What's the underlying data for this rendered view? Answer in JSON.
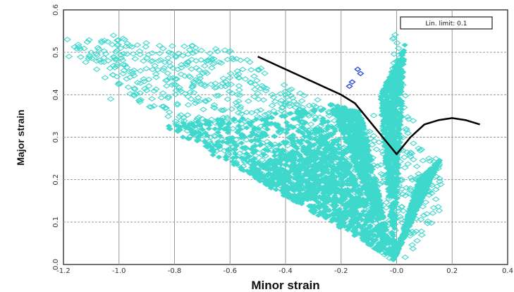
{
  "chart_data": {
    "type": "scatter",
    "title": "",
    "xlabel": "Minor strain",
    "ylabel": "Major strain",
    "xlim": [
      -1.2,
      0.4
    ],
    "ylim": [
      0.0,
      0.6
    ],
    "x_ticks": [
      -1.2,
      -1.0,
      -0.8,
      -0.6,
      -0.4,
      -0.2,
      0.0,
      0.2,
      0.4
    ],
    "x_tick_labels": [
      "-1.2",
      "-1.0",
      "-0.8",
      "-0.6",
      "-0.4",
      "-0.2",
      "-0.0",
      "0.2",
      "0.4"
    ],
    "y_ticks": [
      0.0,
      0.1,
      0.2,
      0.3,
      0.4,
      0.5,
      0.6
    ],
    "y_tick_labels": [
      "0.0",
      "0.1",
      "0.2",
      "0.3",
      "0.4",
      "0.5",
      "0.6"
    ],
    "grid": true,
    "legend": {
      "position": "top-right",
      "entries": [
        "Lin. limit: 0.1"
      ]
    },
    "colors": {
      "safe_points": "#3fd8cc",
      "critical_points": "#2f4fd6",
      "limit_curve": "#000000",
      "grid": "#9a9a9a"
    },
    "series": [
      {
        "role": "point cloud (safe)",
        "marker": "diamond",
        "cloud_outline": [
          [
            -1.2,
            0.53
          ],
          [
            -1.0,
            0.54
          ],
          [
            -0.85,
            0.52
          ],
          [
            -0.67,
            0.52
          ],
          [
            -0.58,
            0.51
          ],
          [
            -0.45,
            0.45
          ],
          [
            -0.3,
            0.4
          ],
          [
            -0.2,
            0.36
          ],
          [
            -0.12,
            0.33
          ],
          [
            -0.04,
            0.4
          ],
          [
            -0.01,
            0.55
          ],
          [
            0.02,
            0.5
          ],
          [
            0.04,
            0.38
          ],
          [
            0.1,
            0.26
          ],
          [
            0.16,
            0.25
          ],
          [
            0.16,
            0.12
          ],
          [
            0.08,
            0.05
          ],
          [
            0.01,
            0.0
          ],
          [
            -0.02,
            0.0
          ],
          [
            -0.12,
            0.06
          ],
          [
            -0.3,
            0.14
          ],
          [
            -0.55,
            0.23
          ],
          [
            -0.8,
            0.32
          ],
          [
            -1.0,
            0.42
          ],
          [
            -1.15,
            0.48
          ]
        ],
        "dense_fans": [
          {
            "tip": [
              -0.01,
              0.01
            ],
            "ends": [
              [
                -0.85,
                0.33
              ],
              [
                -0.25,
                0.37
              ]
            ]
          },
          {
            "tip": [
              -0.01,
              0.01
            ],
            "ends": [
              [
                -0.55,
                0.22
              ],
              [
                -0.23,
                0.31
              ]
            ]
          },
          {
            "tip": [
              -0.01,
              0.01
            ],
            "ends": [
              [
                -0.24,
                0.38
              ],
              [
                -0.13,
                0.36
              ]
            ]
          },
          {
            "tip": [
              -0.01,
              0.01
            ],
            "ends": [
              [
                -0.06,
                0.4
              ],
              [
                0.03,
                0.52
              ]
            ]
          },
          {
            "tip": [
              -0.01,
              0.01
            ],
            "ends": [
              [
                0.08,
                0.2
              ],
              [
                0.16,
                0.25
              ]
            ]
          }
        ],
        "outliers": [
          [
            -1.18,
            0.49
          ],
          [
            -1.1,
            0.5
          ],
          [
            -1.02,
            0.54
          ],
          [
            -0.98,
            0.53
          ],
          [
            -0.95,
            0.45
          ],
          [
            -1.05,
            0.44
          ],
          [
            -1.08,
            0.46
          ],
          [
            -1.03,
            0.39
          ],
          [
            -0.9,
            0.41
          ],
          [
            -0.88,
            0.48
          ],
          [
            -0.82,
            0.5
          ]
        ]
      },
      {
        "role": "critical points",
        "marker": "diamond",
        "points": [
          [
            -0.14,
            0.46
          ],
          [
            -0.17,
            0.42
          ],
          [
            -0.16,
            0.43
          ],
          [
            -0.13,
            0.45
          ]
        ]
      },
      {
        "role": "forming limit curve",
        "name": "Lin. limit: 0.1",
        "x": [
          -0.5,
          -0.4,
          -0.3,
          -0.2,
          -0.15,
          -0.1,
          -0.05,
          0.0,
          0.05,
          0.1,
          0.15,
          0.2,
          0.25,
          0.3
        ],
        "y": [
          0.49,
          0.46,
          0.43,
          0.4,
          0.38,
          0.34,
          0.3,
          0.26,
          0.3,
          0.33,
          0.34,
          0.345,
          0.34,
          0.33
        ]
      }
    ]
  }
}
